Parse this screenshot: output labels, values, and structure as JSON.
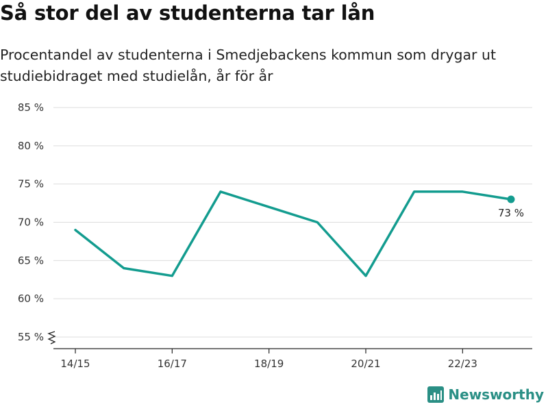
{
  "title": "Så stor del av studenterna tar lån",
  "subtitle": "Procentandel av studenterna i Smedjebackens kommun som drygar ut studiebidraget med studielån, år för år",
  "brand": {
    "name": "Newsworthy",
    "color": "#2a8f85"
  },
  "colors": {
    "line": "#139c8f",
    "grid": "#dddddd",
    "axis": "#222222"
  },
  "chart_data": {
    "type": "line",
    "title": "Så stor del av studenterna tar lån",
    "xlabel": "",
    "ylabel": "",
    "categories": [
      "14/15",
      "15/16",
      "16/17",
      "17/18",
      "18/19",
      "19/20",
      "20/21",
      "21/22",
      "22/23",
      "23/24"
    ],
    "x_tick_labels": [
      "14/15",
      "16/17",
      "18/19",
      "20/21",
      "22/23"
    ],
    "series": [
      {
        "values": [
          69,
          64,
          63,
          74,
          72,
          70,
          63,
          74,
          74,
          73
        ]
      }
    ],
    "y_ticks": [
      55,
      60,
      65,
      70,
      75,
      80,
      85
    ],
    "y_tick_labels": [
      "55 %",
      "60 %",
      "65 %",
      "70 %",
      "75 %",
      "80 %",
      "85 %"
    ],
    "ylim": [
      55,
      85
    ],
    "y_axis_break": true,
    "end_label": "73 %",
    "grid": true
  }
}
